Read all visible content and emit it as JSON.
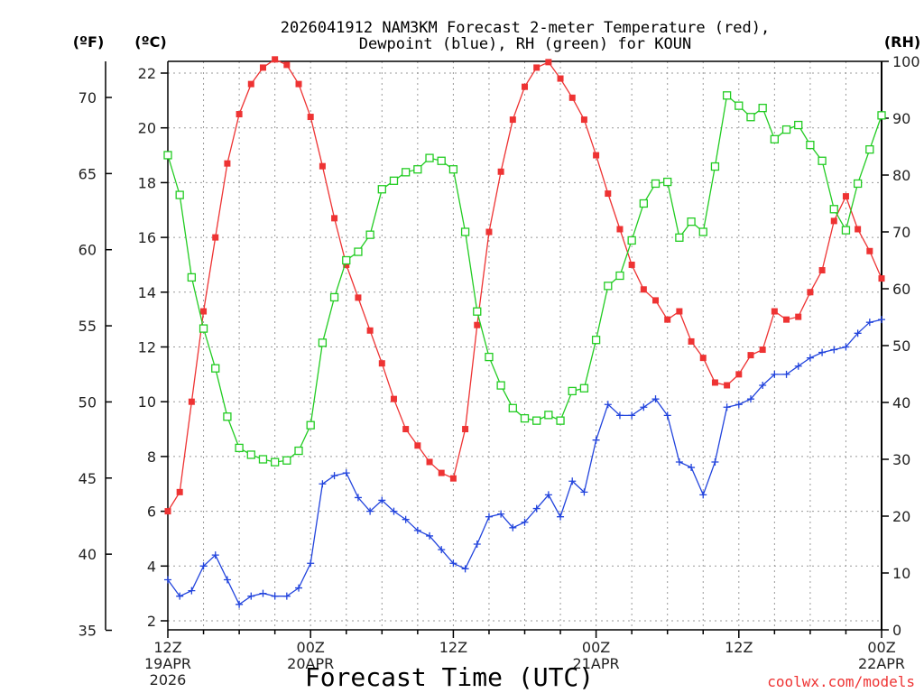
{
  "chart_data": {
    "type": "line",
    "title_line1": "2026041912 NAM3KM Forecast 2-meter Temperature (red),",
    "title_line2": "Dewpoint (blue), RH (green) for KOUN",
    "left_outer_unit": "(ºF)",
    "left_inner_unit": "(ºC)",
    "right_unit": "(RH)",
    "xlabel": "Forecast Time (UTC)",
    "credit": "coolwx.com/models",
    "xlim": [
      0,
      60
    ],
    "celsius_lim": [
      2,
      22
    ],
    "fahrenheit_ticks": [
      35,
      40,
      45,
      50,
      55,
      60,
      65,
      70
    ],
    "celsius_ticks": [
      2,
      4,
      6,
      8,
      10,
      12,
      14,
      16,
      18,
      20,
      22
    ],
    "rh_lim": [
      0,
      100
    ],
    "rh_ticks": [
      0,
      10,
      20,
      30,
      40,
      50,
      60,
      70,
      80,
      90,
      100
    ],
    "x_ticks": [
      {
        "x": 0,
        "lines": [
          "12Z",
          "19APR",
          "2026"
        ]
      },
      {
        "x": 12,
        "lines": [
          "00Z",
          "20APR"
        ]
      },
      {
        "x": 24,
        "lines": [
          "12Z"
        ]
      },
      {
        "x": 36,
        "lines": [
          "00Z",
          "21APR"
        ]
      },
      {
        "x": 48,
        "lines": [
          "12Z"
        ]
      },
      {
        "x": 60,
        "lines": [
          "00Z",
          "22APR"
        ]
      }
    ],
    "colors": {
      "temperature": "#ee3333",
      "dewpoint": "#2244dd",
      "rh": "#22cc22",
      "grid": "#999999"
    },
    "series": [
      {
        "name": "Temperature",
        "unit": "C",
        "marker": "filled-square",
        "color": "#ee3333",
        "x": [
          0,
          1,
          2,
          3,
          4,
          5,
          6,
          7,
          8,
          9,
          10,
          11,
          12,
          13,
          14,
          15,
          16,
          17,
          18,
          19,
          20,
          21,
          22,
          23,
          24,
          25,
          26,
          27,
          28,
          29,
          30,
          31,
          32,
          33,
          34,
          35,
          36,
          37,
          38,
          39,
          40,
          41,
          42,
          43,
          44,
          45,
          46,
          47,
          48,
          49,
          50,
          51,
          52,
          53,
          54,
          55,
          56,
          57,
          58,
          59,
          60
        ],
        "values": [
          6.0,
          6.7,
          10.0,
          13.3,
          16.0,
          18.7,
          20.5,
          21.6,
          22.2,
          22.5,
          22.3,
          21.6,
          20.4,
          18.6,
          16.7,
          15.0,
          13.8,
          12.6,
          11.4,
          10.1,
          9.0,
          8.4,
          7.8,
          7.4,
          7.2,
          9.0,
          12.8,
          16.2,
          18.4,
          20.3,
          21.5,
          22.2,
          22.4,
          21.8,
          21.1,
          20.3,
          19.0,
          17.6,
          16.3,
          15.0,
          14.1,
          13.7,
          13.0,
          13.3,
          12.2,
          11.6,
          10.7,
          10.6,
          11.0,
          11.7,
          11.9,
          13.3,
          13.0,
          13.1,
          14.0,
          14.8,
          16.6,
          17.5,
          16.3,
          15.5,
          14.5
        ]
      },
      {
        "name": "Dewpoint",
        "unit": "C",
        "marker": "plus",
        "color": "#2244dd",
        "x": [
          0,
          1,
          2,
          3,
          4,
          5,
          6,
          7,
          8,
          9,
          10,
          11,
          12,
          13,
          14,
          15,
          16,
          17,
          18,
          19,
          20,
          21,
          22,
          23,
          24,
          25,
          26,
          27,
          28,
          29,
          30,
          31,
          32,
          33,
          34,
          35,
          36,
          37,
          38,
          39,
          40,
          41,
          42,
          43,
          44,
          45,
          46,
          47,
          48,
          49,
          50,
          51,
          52,
          53,
          54,
          55,
          56,
          57,
          58,
          59,
          60
        ],
        "values": [
          3.5,
          2.9,
          3.1,
          4.0,
          4.4,
          3.5,
          2.6,
          2.9,
          3.0,
          2.9,
          2.9,
          3.2,
          4.1,
          7.0,
          7.3,
          7.4,
          6.5,
          6.0,
          6.4,
          6.0,
          5.7,
          5.3,
          5.1,
          4.6,
          4.1,
          3.9,
          4.8,
          5.8,
          5.9,
          5.4,
          5.6,
          6.1,
          6.6,
          5.8,
          7.1,
          6.7,
          8.6,
          9.9,
          9.5,
          9.5,
          9.8,
          10.1,
          9.5,
          7.8,
          7.6,
          6.6,
          7.8,
          9.8,
          9.9,
          10.1,
          10.6,
          11.0,
          11.0,
          11.3,
          11.6,
          11.8,
          11.9,
          12.0,
          12.5,
          12.9,
          13.0
        ]
      },
      {
        "name": "RH",
        "unit": "%",
        "marker": "open-square",
        "color": "#22cc22",
        "x": [
          0,
          1,
          2,
          3,
          4,
          5,
          6,
          7,
          8,
          9,
          10,
          11,
          12,
          13,
          14,
          15,
          16,
          17,
          18,
          19,
          20,
          21,
          22,
          23,
          24,
          25,
          26,
          27,
          28,
          29,
          30,
          31,
          32,
          33,
          34,
          35,
          36,
          37,
          38,
          39,
          40,
          41,
          42,
          43,
          44,
          45,
          46,
          47,
          48,
          49,
          50,
          51,
          52,
          53,
          54,
          55,
          56,
          57,
          58,
          59,
          60
        ],
        "values": [
          83.5,
          76.5,
          62,
          53,
          46,
          37.5,
          32,
          30.8,
          30,
          29.5,
          29.8,
          31.5,
          36,
          50.5,
          58.5,
          65,
          66.5,
          69.5,
          77.5,
          79,
          80.5,
          81,
          83,
          82.5,
          81,
          70,
          56,
          48,
          43,
          39,
          37.2,
          36.8,
          37.8,
          36.8,
          42,
          42.5,
          51,
          60.5,
          62.3,
          68.5,
          75,
          78.5,
          78.8,
          69,
          71.8,
          70,
          81.5,
          94,
          92.2,
          90.2,
          91.8,
          86.3,
          88,
          88.8,
          85.3,
          82.5,
          74,
          70.3,
          78.5,
          84.5,
          90.5
        ]
      }
    ]
  }
}
